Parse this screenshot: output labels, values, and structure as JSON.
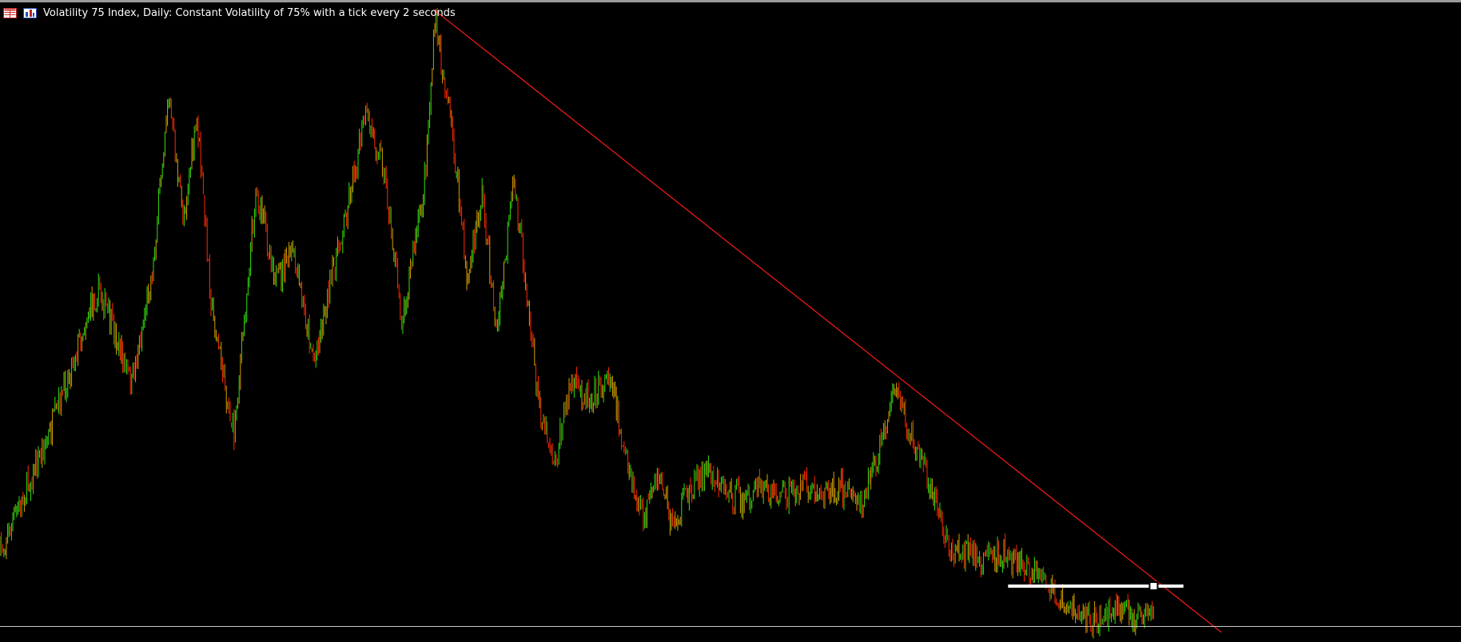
{
  "window": {
    "title": "Volatility 75 Index, Daily:  Constant Volatility of 75% with a tick every 2 seconds"
  },
  "icons": {
    "left": "table-icon",
    "right": "chart-type-icon"
  },
  "colors": {
    "background": "#000000",
    "bull_candle": "#33e010",
    "bear_candle": "#ff2a00",
    "mixed_candle": "#d8a000",
    "trendline": "#ff1a1a",
    "level_marker": "#ffffff",
    "foreground": "#ffffff"
  },
  "chart_data": {
    "type": "candlestick",
    "timeframe": "Daily",
    "symbol": "Volatility 75 Index",
    "price_path_normalized": [
      [
        0,
        0.86
      ],
      [
        0.02,
        0.75
      ],
      [
        0.035,
        0.67
      ],
      [
        0.05,
        0.56
      ],
      [
        0.06,
        0.49
      ],
      [
        0.068,
        0.45
      ],
      [
        0.08,
        0.53
      ],
      [
        0.09,
        0.6
      ],
      [
        0.105,
        0.41
      ],
      [
        0.115,
        0.14
      ],
      [
        0.125,
        0.34
      ],
      [
        0.135,
        0.19
      ],
      [
        0.145,
        0.48
      ],
      [
        0.16,
        0.68
      ],
      [
        0.175,
        0.3
      ],
      [
        0.19,
        0.44
      ],
      [
        0.2,
        0.39
      ],
      [
        0.215,
        0.56
      ],
      [
        0.235,
        0.35
      ],
      [
        0.25,
        0.18
      ],
      [
        0.262,
        0.25
      ],
      [
        0.275,
        0.5
      ],
      [
        0.29,
        0.3
      ],
      [
        0.298,
        0.03
      ],
      [
        0.31,
        0.22
      ],
      [
        0.32,
        0.44
      ],
      [
        0.33,
        0.3
      ],
      [
        0.34,
        0.52
      ],
      [
        0.352,
        0.28
      ],
      [
        0.36,
        0.44
      ],
      [
        0.368,
        0.62
      ],
      [
        0.38,
        0.72
      ],
      [
        0.39,
        0.6
      ],
      [
        0.405,
        0.62
      ],
      [
        0.418,
        0.58
      ],
      [
        0.43,
        0.74
      ],
      [
        0.44,
        0.81
      ],
      [
        0.452,
        0.74
      ],
      [
        0.46,
        0.82
      ],
      [
        0.475,
        0.75
      ],
      [
        0.485,
        0.73
      ],
      [
        0.5,
        0.77
      ],
      [
        0.51,
        0.78
      ],
      [
        0.52,
        0.76
      ],
      [
        0.53,
        0.77
      ],
      [
        0.54,
        0.77
      ],
      [
        0.55,
        0.76
      ],
      [
        0.56,
        0.77
      ],
      [
        0.575,
        0.76
      ],
      [
        0.59,
        0.78
      ],
      [
        0.602,
        0.7
      ],
      [
        0.612,
        0.6
      ],
      [
        0.62,
        0.66
      ],
      [
        0.628,
        0.7
      ],
      [
        0.64,
        0.77
      ],
      [
        0.648,
        0.85
      ],
      [
        0.66,
        0.86
      ],
      [
        0.675,
        0.87
      ],
      [
        0.69,
        0.86
      ],
      [
        0.7,
        0.88
      ],
      [
        0.71,
        0.9
      ],
      [
        0.725,
        0.93
      ],
      [
        0.735,
        0.95
      ],
      [
        0.75,
        0.97
      ],
      [
        0.762,
        0.95
      ],
      [
        0.77,
        0.95
      ],
      [
        0.79,
        0.97
      ]
    ],
    "trendline": {
      "description": "descending resistance line from the all-time high",
      "start": [
        0.297,
        0.015
      ],
      "end": [
        0.836,
        0.985
      ]
    },
    "horizontal_level": {
      "description": "white horizontal level with handle",
      "y": 0.913,
      "x_start": 0.69,
      "x_end": 0.81
    },
    "grid": false
  }
}
